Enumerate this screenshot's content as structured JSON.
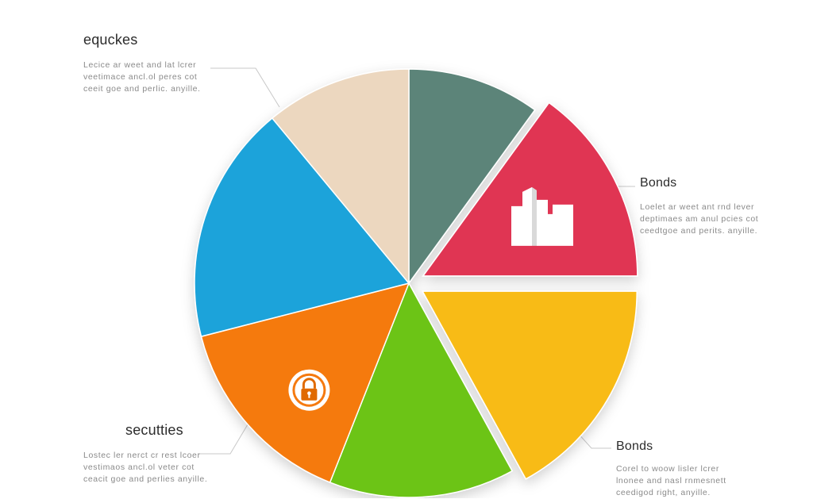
{
  "chart_data": {
    "type": "pie",
    "title": "",
    "slices": [
      {
        "name": "",
        "value": 10,
        "color": "#5b8479",
        "exploded": false
      },
      {
        "name": "Bonds",
        "value": 15,
        "color": "#e03452",
        "exploded": true,
        "icon": "building-icon"
      },
      {
        "name": "Bonds",
        "value": 17,
        "color": "#f8bb18",
        "exploded": true
      },
      {
        "name": "",
        "value": 14,
        "color": "#6cc417",
        "exploded": false
      },
      {
        "name": "secutties",
        "value": 15,
        "color": "#f57a10",
        "exploded": false,
        "icon": "lock-icon"
      },
      {
        "name": "",
        "value": 18,
        "color": "#1fa3da",
        "exploded": false
      },
      {
        "name": "equckes",
        "value": 11,
        "color": "#ecd7bf",
        "exploded": false
      }
    ]
  },
  "labels": {
    "top_left": {
      "title": "equckes",
      "lines": [
        "Lecice ar weet and lat lcrer",
        "veetimace ancl.ol peres cot",
        "ceeit goe and perlic. anyille."
      ]
    },
    "top_right": {
      "title": "Bonds",
      "lines": [
        "Loelet ar weet ant rnd lever",
        "deptimaes am anul pcies cot",
        "ceedtgoe and perits. anyille."
      ]
    },
    "bottom_left": {
      "title": "secutties",
      "lines": [
        "Lostec ler nerct cr rest lcoer",
        "vestimaos ancl.ol veter cot",
        "ceacit goe and perlies anyille."
      ]
    },
    "bottom_right": {
      "title": "Bonds",
      "lines": [
        "Corel to woow lisler lcrer",
        "lnonee and nasl rnmesnett",
        "ceedigod right, anyille."
      ]
    }
  }
}
